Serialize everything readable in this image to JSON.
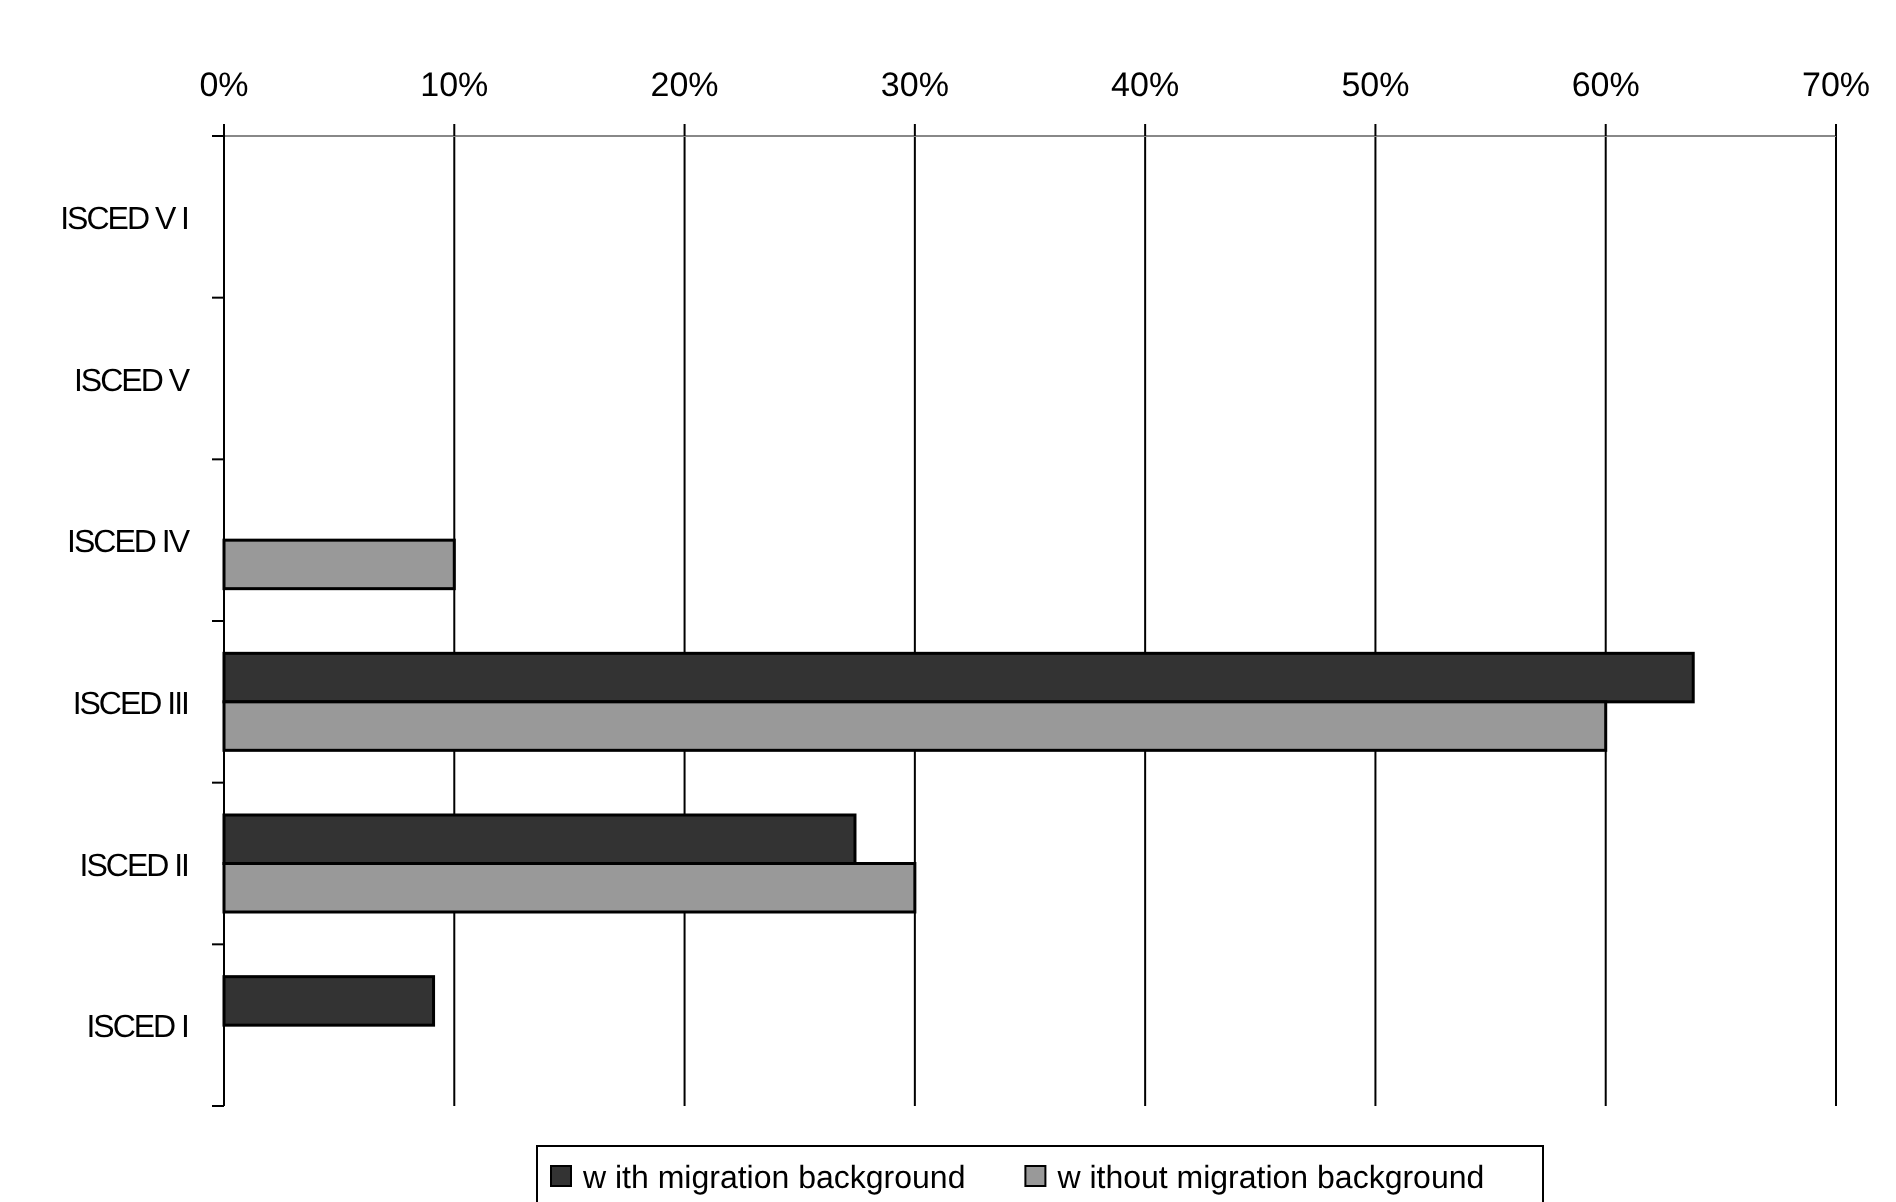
{
  "chart_data": {
    "type": "bar",
    "orientation": "horizontal",
    "categories": [
      "ISCED V I",
      "ISCED V",
      "ISCED IV",
      "ISCED III",
      "ISCED II",
      "ISCED I"
    ],
    "series": [
      {
        "name": "w ith migration background",
        "color": "#333333",
        "values": [
          null,
          null,
          null,
          63.8,
          27.4,
          9.1
        ]
      },
      {
        "name": "w ithout migration background",
        "color": "#999999",
        "values": [
          null,
          null,
          10,
          60,
          30,
          null
        ]
      }
    ],
    "xlim": [
      0,
      70
    ],
    "xticks": [
      {
        "value": 0,
        "label": "0%"
      },
      {
        "value": 10,
        "label": "10%"
      },
      {
        "value": 20,
        "label": "20%"
      },
      {
        "value": 30,
        "label": "30%"
      },
      {
        "value": 40,
        "label": "40%"
      },
      {
        "value": 50,
        "label": "50%"
      },
      {
        "value": 60,
        "label": "60%"
      },
      {
        "value": 70,
        "label": "70%"
      }
    ],
    "grid": "x",
    "legend": "bottom"
  }
}
